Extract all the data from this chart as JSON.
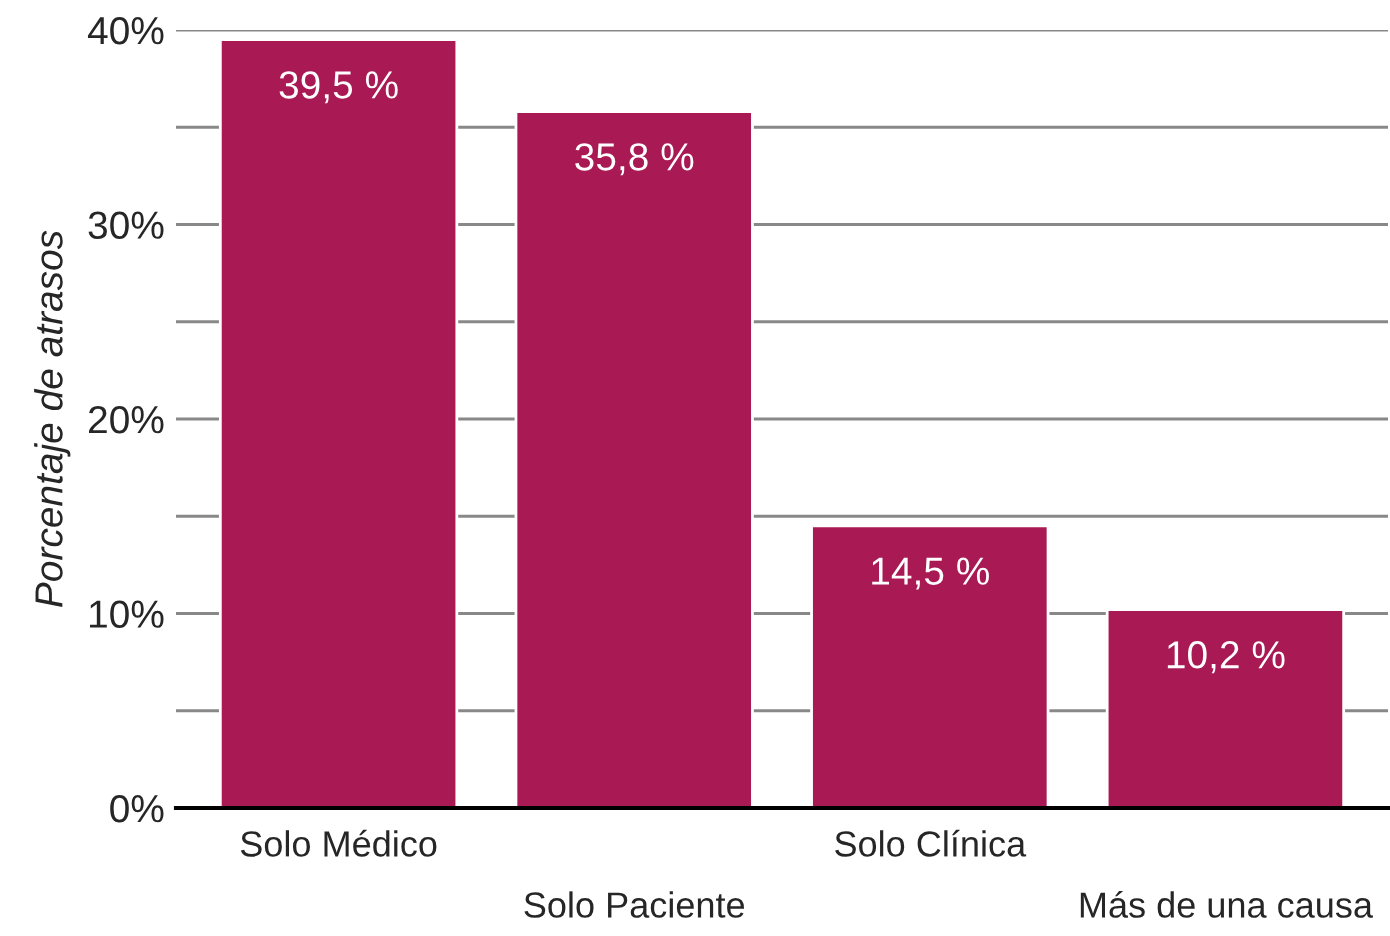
{
  "chart_data": {
    "type": "bar",
    "ylabel": "Porcentaje de atrasos",
    "categories": [
      "Solo Médico",
      "Solo Paciente",
      "Solo Clínica",
      "Más de una causa"
    ],
    "values": [
      39.5,
      35.8,
      14.5,
      10.2
    ],
    "value_labels": [
      "39,5 %",
      "35,8 %",
      "14,5 %",
      "10,2 %"
    ],
    "color": "#a91a55",
    "ylim": [
      0,
      40
    ],
    "yticks": [
      {
        "value": 0,
        "label": "0%"
      },
      {
        "value": 5,
        "label": null
      },
      {
        "value": 10,
        "label": "10%"
      },
      {
        "value": 15,
        "label": null
      },
      {
        "value": 20,
        "label": "20%"
      },
      {
        "value": 25,
        "label": null
      },
      {
        "value": 30,
        "label": "30%"
      },
      {
        "value": 35,
        "label": null
      },
      {
        "value": 40,
        "label": "40%"
      }
    ],
    "grid": "y"
  }
}
